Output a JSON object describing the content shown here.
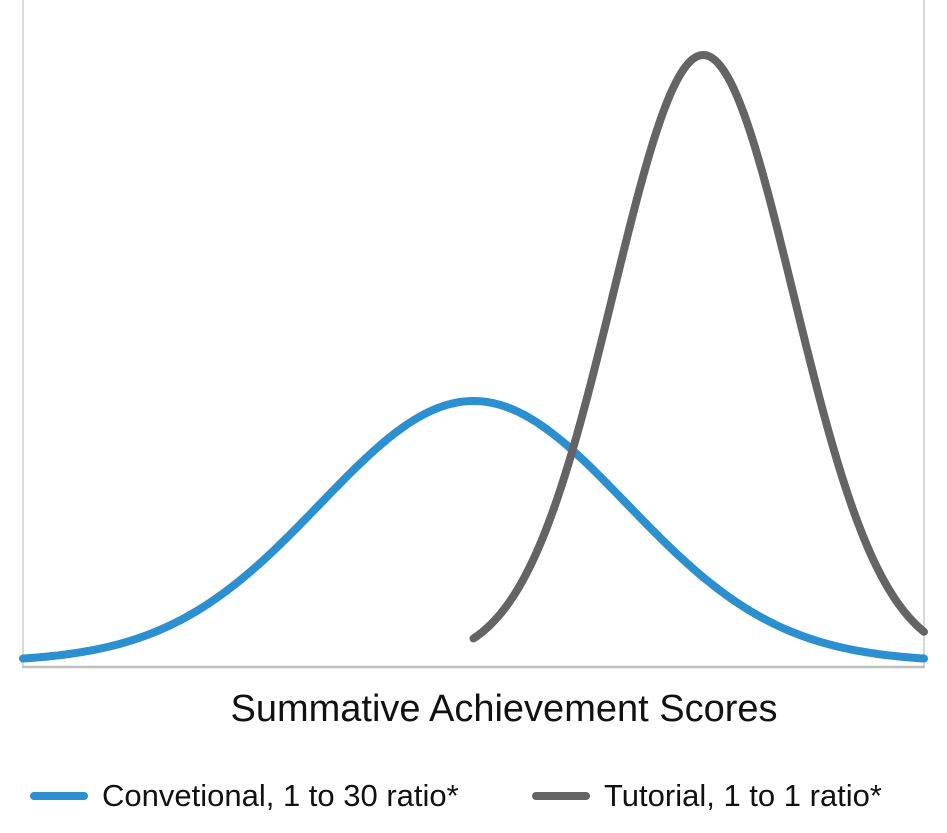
{
  "chart_data": {
    "type": "line",
    "title": "",
    "xlabel": "Summative Achievement Scores",
    "ylabel": "",
    "xlim": [
      0,
      100
    ],
    "ylim": [
      0,
      1
    ],
    "grid": false,
    "legend_position": "bottom",
    "series": [
      {
        "name": "Convetional, 1 to 30 ratio*",
        "color": "#2b8fd0",
        "distribution": "normal",
        "mean": 50,
        "sd": 17,
        "peak": 0.43,
        "x_range": [
          0,
          100
        ]
      },
      {
        "name": "Tutorial, 1 to 1 ratio*",
        "color": "#646464",
        "distribution": "normal",
        "mean": 75.5,
        "sd": 10,
        "peak": 1.0,
        "x_range": [
          50,
          100
        ]
      }
    ]
  }
}
